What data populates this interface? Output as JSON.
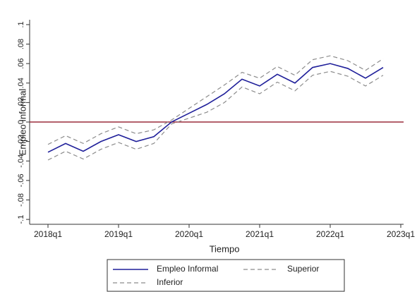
{
  "chart_data": {
    "type": "line",
    "x_label": "Tiempo",
    "y_label": "Empleo Informal",
    "x": [
      2018,
      2018.25,
      2018.5,
      2018.75,
      2019,
      2019.25,
      2019.5,
      2019.75,
      2020,
      2020.25,
      2020.5,
      2020.75,
      2021,
      2021.25,
      2021.5,
      2021.75,
      2022,
      2022.25,
      2022.5,
      2022.75
    ],
    "series": [
      {
        "name": "Empleo Informal",
        "color": "#1f1f9a",
        "dash": false,
        "values": [
          -0.031,
          -0.022,
          -0.03,
          -0.02,
          -0.013,
          -0.02,
          -0.015,
          0.0,
          0.009,
          0.018,
          0.029,
          0.044,
          0.037,
          0.049,
          0.04,
          0.056,
          0.06,
          0.055,
          0.045,
          0.056
        ]
      },
      {
        "name": "Superior",
        "color": "#8c8c8c",
        "dash": true,
        "values": [
          -0.023,
          -0.014,
          -0.022,
          -0.012,
          -0.005,
          -0.012,
          -0.008,
          0.002,
          0.014,
          0.026,
          0.038,
          0.051,
          0.045,
          0.057,
          0.048,
          0.064,
          0.068,
          0.063,
          0.053,
          0.065
        ]
      },
      {
        "name": "Inferior",
        "color": "#8c8c8c",
        "dash": true,
        "values": [
          -0.039,
          -0.03,
          -0.038,
          -0.028,
          -0.021,
          -0.028,
          -0.022,
          -0.002,
          0.004,
          0.01,
          0.02,
          0.036,
          0.029,
          0.041,
          0.032,
          0.048,
          0.052,
          0.047,
          0.037,
          0.048
        ]
      }
    ],
    "reference_line": {
      "value": 0,
      "color": "#9b2d3c"
    },
    "xlim": [
      2017.74,
      2023.04
    ],
    "xticks": [
      {
        "value": 2018,
        "label": "2018q1"
      },
      {
        "value": 2019,
        "label": "2019q1"
      },
      {
        "value": 2020,
        "label": "2020q1"
      },
      {
        "value": 2021,
        "label": "2021q1"
      },
      {
        "value": 2022,
        "label": "2022q1"
      },
      {
        "value": 2023,
        "label": "2023q1"
      }
    ],
    "ylim": [
      -0.105,
      0.105
    ],
    "yticks": [
      {
        "value": -0.1,
        "label": "-.1"
      },
      {
        "value": -0.08,
        "label": "-.08"
      },
      {
        "value": -0.06,
        "label": "-.06"
      },
      {
        "value": -0.04,
        "label": "-.04"
      },
      {
        "value": -0.02,
        "label": "-.02"
      },
      0,
      {
        "value": 0.02,
        "label": ".02"
      },
      {
        "value": 0.04,
        "label": ".04"
      },
      {
        "value": 0.06,
        "label": ".06"
      },
      {
        "value": 0.08,
        "label": ".08"
      },
      {
        "value": 0.1,
        "label": ".1"
      }
    ],
    "grid": false
  }
}
